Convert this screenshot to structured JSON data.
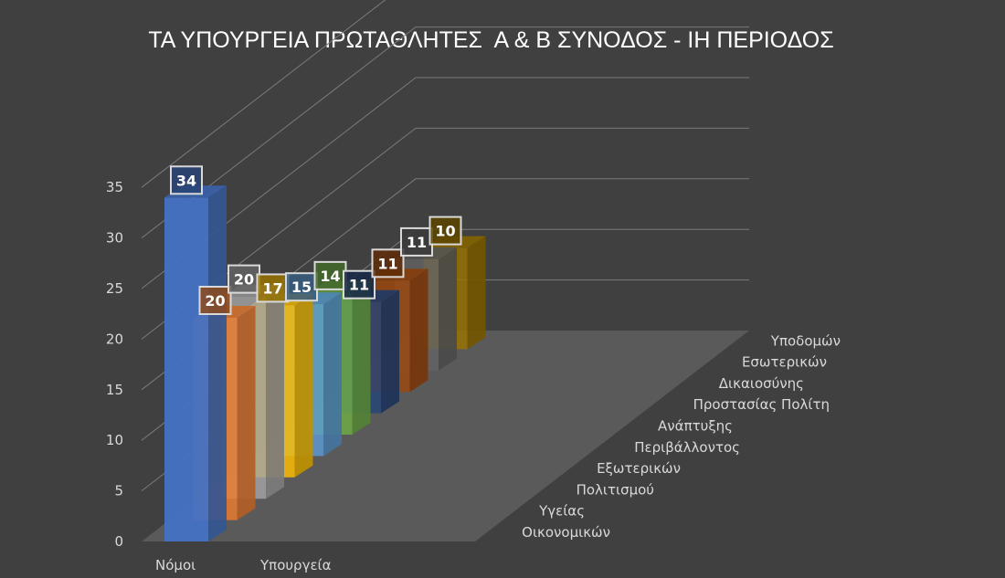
{
  "chart_data": {
    "type": "bar",
    "title": "ΤΑ ΥΠΟΥΡΓΕΙΑ ΠΡΩΤΑΘΛΗΤΕΣ  Α & Β ΣΥΝΟΔΟΣ - ΙΗ ΠΕΡΙΟΔΟΣ",
    "xlabel": "Υπουργεία",
    "ylabel": "",
    "series_axis_label": "Νόμοι",
    "categories": [
      "Οικονομικών",
      "Υγείας",
      "Πολιτισμού",
      "Εξωτερικών",
      "Περιβάλλοντος",
      "Ανάπτυξης",
      "Προστασίας Πολίτη",
      "Δικαιοσύνης",
      "Εσωτερικών",
      "Υποδομών"
    ],
    "values": [
      34,
      20,
      20,
      17,
      15,
      14,
      11,
      11,
      11,
      10
    ],
    "colors": [
      "#4472c4",
      "#ed7d31",
      "#a5a5a5",
      "#ffc000",
      "#5b9bd5",
      "#70ad47",
      "#264478",
      "#9e480e",
      "#636363",
      "#997300"
    ],
    "ylim": [
      0,
      35
    ],
    "yticks": [
      0,
      5,
      10,
      15,
      20,
      25,
      30,
      35
    ],
    "grid": true,
    "data_labels": true,
    "style": "3d-column"
  }
}
